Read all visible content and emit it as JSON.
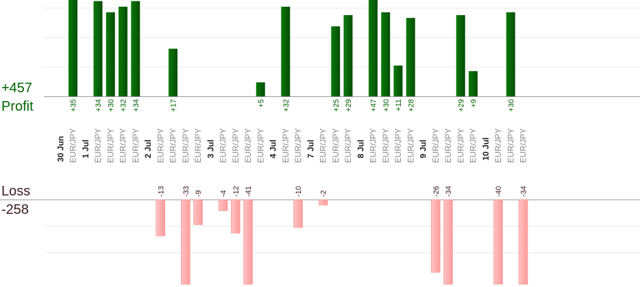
{
  "summary": {
    "profit_total": "+457",
    "profit_label": "Profit",
    "loss_label": "Loss",
    "loss_total": "-258"
  },
  "colors": {
    "profit": "#0a6a0a",
    "loss": "#ffb3b3",
    "profit_text": "#006400",
    "loss_text": "#3a1a1a",
    "grid": "#e8e8e8"
  },
  "chart_data": {
    "type": "bar",
    "grid": true,
    "days": [
      {
        "date": "30 Jun",
        "trades": [
          {
            "pair": "EUR/JPY",
            "value": 35
          }
        ]
      },
      {
        "date": "1 Jul",
        "trades": [
          {
            "pair": "EUR/JPY",
            "value": 34
          },
          {
            "pair": "EUR/JPY",
            "value": 30
          },
          {
            "pair": "EUR/JPY",
            "value": 32
          },
          {
            "pair": "EUR/JPY",
            "value": 34
          }
        ]
      },
      {
        "date": "2 Jul",
        "trades": [
          {
            "pair": "EUR/JPY",
            "value": -13
          },
          {
            "pair": "EUR/JPY",
            "value": 17
          },
          {
            "pair": "EUR/JPY",
            "value": -33
          },
          {
            "pair": "EUR/JPY",
            "value": -9
          }
        ]
      },
      {
        "date": "3 Jul",
        "trades": [
          {
            "pair": "EUR/JPY",
            "value": -4
          },
          {
            "pair": "EUR/JPY",
            "value": -12
          },
          {
            "pair": "EUR/JPY",
            "value": -41
          },
          {
            "pair": "EUR/JPY",
            "value": 5
          }
        ]
      },
      {
        "date": "4 Jul",
        "trades": [
          {
            "pair": "EUR/JPY",
            "value": 32
          },
          {
            "pair": "EUR/JPY",
            "value": -10
          }
        ]
      },
      {
        "date": "7 Jul",
        "trades": [
          {
            "pair": "EUR/JPY",
            "value": -2
          },
          {
            "pair": "EUR/JPY",
            "value": 25
          },
          {
            "pair": "EUR/JPY",
            "value": 29
          }
        ]
      },
      {
        "date": "8 Jul",
        "trades": [
          {
            "pair": "EUR/JPY",
            "value": 47
          },
          {
            "pair": "EUR/JPY",
            "value": 30
          },
          {
            "pair": "EUR/JPY",
            "value": 11
          },
          {
            "pair": "EUR/JPY",
            "value": 28
          }
        ]
      },
      {
        "date": "9 Jul",
        "trades": [
          {
            "pair": "EUR/JPY",
            "value": -26
          },
          {
            "pair": "EUR/JPY",
            "value": -34
          },
          {
            "pair": "EUR/JPY",
            "value": 29
          },
          {
            "pair": "EUR/JPY",
            "value": 9
          }
        ]
      },
      {
        "date": "10 Jul",
        "trades": [
          {
            "pair": "EUR/JPY",
            "value": -40
          },
          {
            "pair": "EUR/JPY",
            "value": 30
          },
          {
            "pair": "EUR/JPY",
            "value": -34
          }
        ]
      }
    ]
  }
}
